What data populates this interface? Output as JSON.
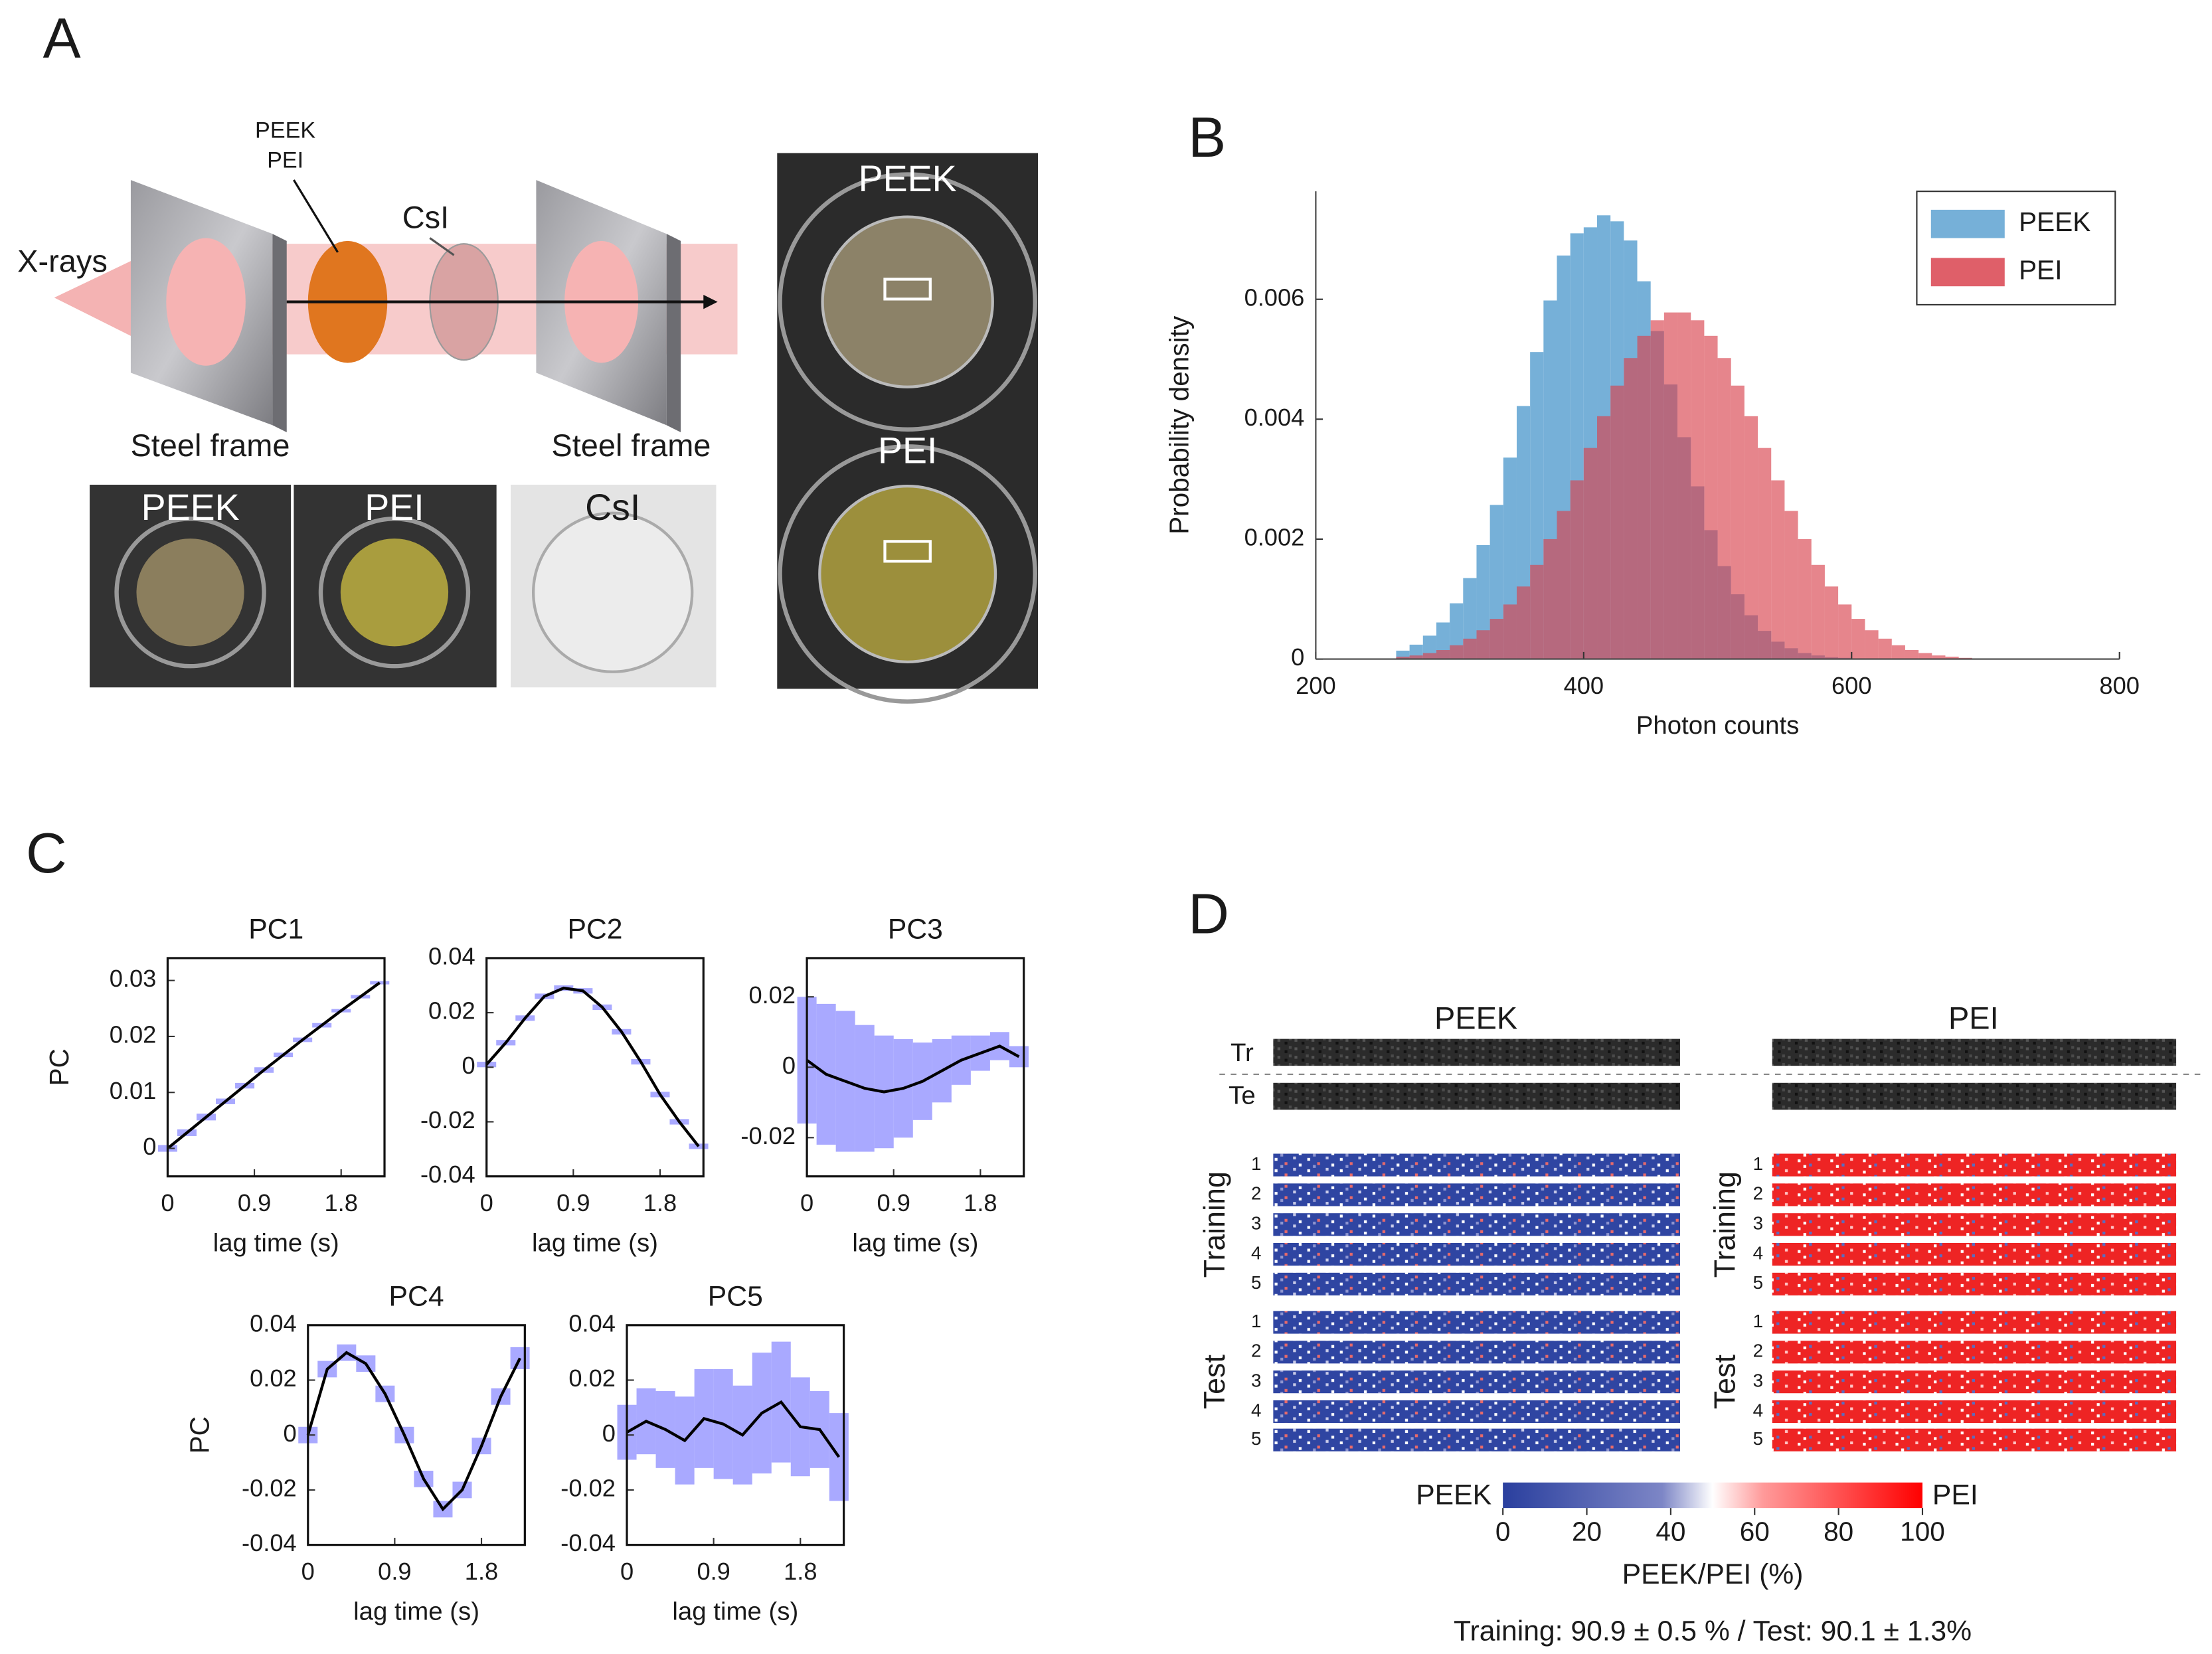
{
  "panel_labels": {
    "a": "A",
    "b": "B",
    "c": "C",
    "d": "D"
  },
  "panel_a": {
    "xrays": "X-rays",
    "sample_top": "PEEK",
    "sample_bottom": "PEI",
    "scintillator": "CsI",
    "frame_left": "Steel frame",
    "frame_right": "Steel frame",
    "photos": [
      "PEEK",
      "PEI",
      "CsI"
    ],
    "closeups": [
      "PEEK",
      "PEI"
    ]
  },
  "chart_data": [
    {
      "type": "histogram",
      "xlabel": "Photon counts",
      "ylabel": "Probability density",
      "bins": [
        260,
        270,
        280,
        290,
        300,
        310,
        320,
        330,
        340,
        350,
        360,
        370,
        380,
        390,
        400,
        410,
        420,
        430,
        440,
        450,
        460,
        470,
        480,
        490,
        500,
        510,
        520,
        530,
        540,
        550,
        560,
        570,
        580,
        590,
        600,
        610,
        620,
        630,
        640,
        650,
        660,
        670,
        680,
        690,
        700,
        710,
        720
      ],
      "series": [
        {
          "name": "PEEK",
          "color": "#76b0d8",
          "values": [
            0.00014,
            0.00024,
            0.00039,
            0.00061,
            0.00093,
            0.00135,
            0.0019,
            0.00257,
            0.00336,
            0.00422,
            0.00512,
            0.00598,
            0.00673,
            0.0071,
            0.0072,
            0.0074,
            0.0073,
            0.00698,
            0.0063,
            0.00547,
            0.00458,
            0.0037,
            0.00288,
            0.00215,
            0.00155,
            0.00108,
            0.00073,
            0.00047,
            0.00029,
            0.00018,
            0.0001,
            6e-05,
            3e-05,
            2e-05,
            0,
            0,
            0,
            0,
            0,
            0,
            0,
            0,
            0,
            0,
            0,
            0
          ]
        },
        {
          "name": "PEI",
          "color": "#d9434f",
          "values": [
            4e-05,
            6e-05,
            0.0001,
            0.00015,
            0.00023,
            0.00034,
            0.00048,
            0.00067,
            0.00091,
            0.00121,
            0.00157,
            0.002,
            0.00247,
            0.00298,
            0.00352,
            0.00405,
            0.00456,
            0.00502,
            0.00539,
            0.00565,
            0.00578,
            0.00578,
            0.00565,
            0.00539,
            0.00502,
            0.00456,
            0.00405,
            0.00352,
            0.00298,
            0.00247,
            0.002,
            0.00157,
            0.00121,
            0.00091,
            0.00067,
            0.00048,
            0.00034,
            0.00023,
            0.00015,
            0.0001,
            6e-05,
            4e-05,
            2e-05,
            1e-05,
            0,
            0
          ]
        }
      ],
      "xlim": [
        200,
        800
      ],
      "ylim": [
        0,
        0.0078
      ],
      "xticks": [
        200,
        400,
        600,
        800
      ],
      "yticks": [
        0,
        0.002,
        0.004,
        0.006
      ],
      "legend": "upper right"
    },
    {
      "type": "line",
      "title": "PC1",
      "xlabel": "lag time (s)",
      "ylabel": "PC",
      "x": [
        0,
        0.2,
        0.4,
        0.6,
        0.8,
        1,
        1.2,
        1.4,
        1.6,
        1.8,
        2,
        2.2
      ],
      "series": [
        {
          "color": "#000000",
          "band_color": "#8c8cff",
          "values": [
            0,
            0.0028,
            0.0056,
            0.0084,
            0.0112,
            0.014,
            0.0167,
            0.0194,
            0.022,
            0.0246,
            0.0271,
            0.0296
          ],
          "error": [
            0.0006,
            0.0006,
            0.0006,
            0.0005,
            0.0005,
            0.0005,
            0.0004,
            0.0004,
            0.0004,
            0.0003,
            0.0003,
            0.0003
          ]
        }
      ],
      "xlim": [
        0,
        2.25
      ],
      "ylim": [
        -0.005,
        0.034
      ],
      "xticks": [
        0,
        0.9,
        1.8
      ],
      "yticks": [
        0,
        0.01,
        0.02,
        0.03
      ]
    },
    {
      "type": "line",
      "title": "PC2",
      "xlabel": "lag time (s)",
      "x": [
        0,
        0.2,
        0.4,
        0.6,
        0.8,
        1,
        1.2,
        1.4,
        1.6,
        1.8,
        2,
        2.2
      ],
      "series": [
        {
          "color": "#000000",
          "band_color": "#8c8cff",
          "values": [
            0.001,
            0.009,
            0.018,
            0.026,
            0.029,
            0.028,
            0.022,
            0.013,
            0.002,
            -0.01,
            -0.02,
            -0.029
          ],
          "error": [
            0.001,
            0.001,
            0.001,
            0.001,
            0.001,
            0.001,
            0.001,
            0.001,
            0.001,
            0.001,
            0.001,
            0.001
          ]
        }
      ],
      "xlim": [
        0,
        2.25
      ],
      "ylim": [
        -0.04,
        0.04
      ],
      "xticks": [
        0,
        0.9,
        1.8
      ],
      "yticks": [
        -0.04,
        -0.02,
        0,
        0.02,
        0.04
      ]
    },
    {
      "type": "line",
      "title": "PC3",
      "xlabel": "lag time (s)",
      "x": [
        0,
        0.2,
        0.4,
        0.6,
        0.8,
        1,
        1.2,
        1.4,
        1.6,
        1.8,
        2,
        2.2
      ],
      "series": [
        {
          "color": "#000000",
          "band_color": "#8c8cff",
          "values": [
            0.002,
            -0.002,
            -0.004,
            -0.006,
            -0.007,
            -0.006,
            -0.004,
            -0.001,
            0.002,
            0.004,
            0.006,
            0.003
          ],
          "error": [
            0.018,
            0.02,
            0.02,
            0.018,
            0.016,
            0.014,
            0.011,
            0.009,
            0.007,
            0.005,
            0.004,
            0.003
          ]
        }
      ],
      "xlim": [
        0,
        2.25
      ],
      "ylim": [
        -0.031,
        0.031
      ],
      "xticks": [
        0,
        0.9,
        1.8
      ],
      "yticks": [
        -0.02,
        0,
        0.02
      ]
    },
    {
      "type": "line",
      "title": "PC4",
      "xlabel": "lag time (s)",
      "ylabel": "PC",
      "x": [
        0,
        0.2,
        0.4,
        0.6,
        0.8,
        1,
        1.2,
        1.4,
        1.6,
        1.8,
        2,
        2.2
      ],
      "series": [
        {
          "color": "#000000",
          "band_color": "#8c8cff",
          "values": [
            0,
            0.024,
            0.03,
            0.026,
            0.015,
            0,
            -0.016,
            -0.027,
            -0.02,
            -0.004,
            0.014,
            0.028
          ],
          "error": [
            0.003,
            0.003,
            0.003,
            0.003,
            0.003,
            0.003,
            0.003,
            0.003,
            0.003,
            0.003,
            0.003,
            0.004
          ]
        }
      ],
      "xlim": [
        0,
        2.25
      ],
      "ylim": [
        -0.04,
        0.04
      ],
      "xticks": [
        0,
        0.9,
        1.8
      ],
      "yticks": [
        -0.04,
        -0.02,
        0,
        0.02,
        0.04
      ]
    },
    {
      "type": "line",
      "title": "PC5",
      "xlabel": "lag time (s)",
      "x": [
        0,
        0.2,
        0.4,
        0.6,
        0.8,
        1,
        1.2,
        1.4,
        1.6,
        1.8,
        2,
        2.2
      ],
      "series": [
        {
          "color": "#000000",
          "band_color": "#8c8cff",
          "values": [
            0.001,
            0.005,
            0.002,
            -0.002,
            0.006,
            0.004,
            0,
            0.008,
            0.012,
            0.003,
            0.002,
            -0.008
          ],
          "error": [
            0.01,
            0.012,
            0.014,
            0.016,
            0.018,
            0.02,
            0.018,
            0.022,
            0.022,
            0.018,
            0.014,
            0.016
          ]
        }
      ],
      "xlim": [
        0,
        2.25
      ],
      "ylim": [
        -0.04,
        0.04
      ],
      "xticks": [
        0,
        0.9,
        1.8
      ],
      "yticks": [
        -0.04,
        -0.02,
        0,
        0.02,
        0.04
      ]
    }
  ],
  "panel_d": {
    "columns": [
      "PEEK",
      "PEI"
    ],
    "row_labels": [
      "Tr",
      "Te"
    ],
    "groups": [
      "Training",
      "Test"
    ],
    "row_numbers": [
      "1",
      "2",
      "3",
      "4",
      "5"
    ],
    "colorbar": {
      "low_label": "PEEK",
      "high_label": "PEI",
      "lim": [
        0,
        100
      ],
      "ticks": [
        0,
        20,
        40,
        60,
        80,
        100
      ],
      "label": "PEEK/PEI (%)"
    },
    "accuracy": "Training: 90.9 ± 0.5 % / Test: 90.1 ± 1.3%"
  }
}
